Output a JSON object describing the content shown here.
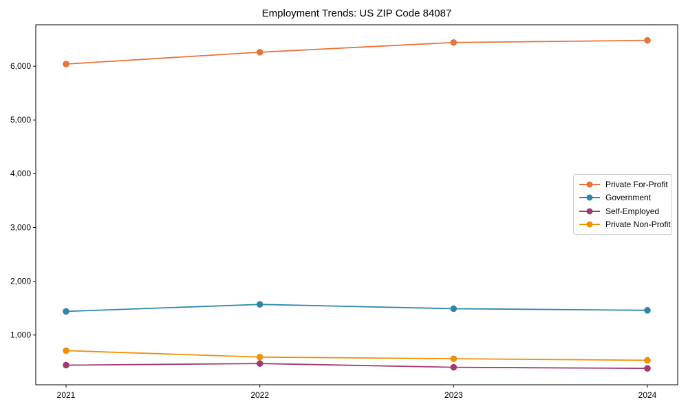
{
  "chart_data": {
    "type": "line",
    "title": "Employment Trends: US ZIP Code 84087",
    "xlabel": "",
    "ylabel": "",
    "x": [
      "2021",
      "2022",
      "2023",
      "2024"
    ],
    "series": [
      {
        "name": "Private For-Profit",
        "color": "#E8743B",
        "values": [
          6040,
          6260,
          6440,
          6480
        ]
      },
      {
        "name": "Government",
        "color": "#2E86AB",
        "values": [
          1440,
          1570,
          1490,
          1460
        ]
      },
      {
        "name": "Self-Employed",
        "color": "#A23B72",
        "values": [
          440,
          470,
          400,
          380
        ]
      },
      {
        "name": "Private Non-Profit",
        "color": "#F18F01",
        "values": [
          710,
          590,
          560,
          530
        ]
      }
    ],
    "yticks": [
      1000,
      2000,
      3000,
      4000,
      5000,
      6000
    ],
    "ytick_labels": [
      "1,000",
      "2,000",
      "3,000",
      "4,000",
      "5,000",
      "6,000"
    ],
    "ylim": [
      75,
      6770
    ],
    "grid": false,
    "legend_position": "center right",
    "background_color": "#ffffff",
    "axis_color": "#000000"
  }
}
